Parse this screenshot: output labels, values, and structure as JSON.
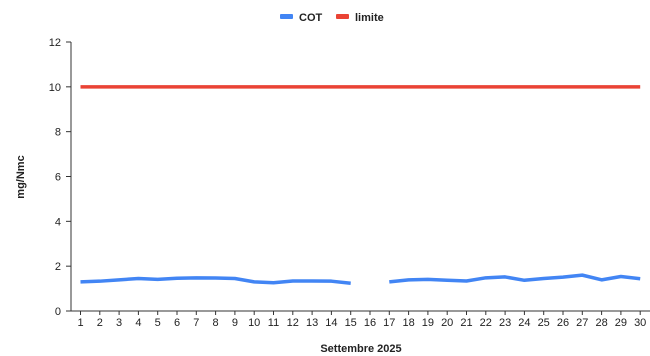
{
  "chart_data": {
    "type": "line",
    "title": "",
    "xlabel": "Settembre 2025",
    "ylabel": "mg/Nmc",
    "ylim": [
      0,
      12
    ],
    "yticks": [
      0,
      2,
      4,
      6,
      8,
      10,
      12
    ],
    "grid": false,
    "legend_position": "top",
    "categories": [
      "1",
      "2",
      "3",
      "4",
      "5",
      "6",
      "7",
      "8",
      "9",
      "10",
      "11",
      "12",
      "13",
      "14",
      "15",
      "16",
      "17",
      "18",
      "19",
      "20",
      "21",
      "22",
      "23",
      "24",
      "25",
      "26",
      "27",
      "28",
      "29",
      "30"
    ],
    "series": [
      {
        "name": "COT",
        "color": "#4285f4",
        "values": [
          1.3,
          1.33,
          1.39,
          1.45,
          1.41,
          1.46,
          1.48,
          1.47,
          1.45,
          1.3,
          1.26,
          1.34,
          1.34,
          1.33,
          1.24,
          null,
          1.3,
          1.39,
          1.41,
          1.37,
          1.34,
          1.48,
          1.52,
          1.37,
          1.45,
          1.51,
          1.6,
          1.39,
          1.54,
          1.44
        ]
      },
      {
        "name": "limite",
        "color": "#ea4335",
        "values": [
          10,
          10,
          10,
          10,
          10,
          10,
          10,
          10,
          10,
          10,
          10,
          10,
          10,
          10,
          10,
          10,
          10,
          10,
          10,
          10,
          10,
          10,
          10,
          10,
          10,
          10,
          10,
          10,
          10,
          10
        ]
      }
    ]
  }
}
